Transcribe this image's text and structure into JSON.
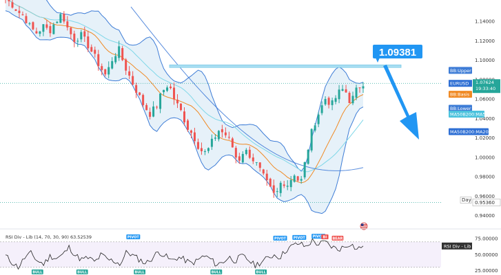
{
  "chart_data": [
    {
      "type": "candlestick",
      "symbol": "EURUSD",
      "price_axis_ticks": [
        "1.14000",
        "1.12000",
        "1.10000",
        "1.08000",
        "1.06000",
        "1.04000",
        "1.02000",
        "1.00000",
        "0.98000",
        "0.96000",
        "0.94000"
      ],
      "ylim": [
        0.932,
        1.162
      ],
      "callout_value": "1.09381",
      "resistance_zone": [
        1.0925,
        1.0952
      ],
      "labels": {
        "bb_upper": "BB:Upper",
        "symbol": "EURUSD",
        "last_price": "1.07624",
        "countdown": "19:33:40",
        "bb_basis": "BB:Basis",
        "bb_lower": "BB:Lower",
        "ma50": "MA50B200:MA50",
        "ma200": "MA50B200:MA200",
        "day_low_tag": "Day",
        "day_low_value": "0.95360"
      },
      "label_values": {
        "bb_upper": 1.0825,
        "last_price": 1.0762,
        "bb_basis": 1.065,
        "bb_lower": 1.0505,
        "ma50": 1.0445,
        "ma200": 1.0265,
        "day_low": 0.9536
      },
      "close_path": [
        1.163,
        1.158,
        1.15,
        1.145,
        1.133,
        1.128,
        1.135,
        1.13,
        1.14,
        1.148,
        1.131,
        1.121,
        1.126,
        1.117,
        1.106,
        1.094,
        1.084,
        1.101,
        1.112,
        1.094,
        1.08,
        1.067,
        1.054,
        1.045,
        1.052,
        1.068,
        1.076,
        1.058,
        1.047,
        1.031,
        1.022,
        1.008,
        1.004,
        1.017,
        1.028,
        1.024,
        1.014,
        0.995,
        1.008,
        1.002,
        0.993,
        0.981,
        0.969,
        0.959,
        0.976,
        0.972,
        0.984,
        0.972,
        1.003,
        1.032,
        1.047,
        1.061,
        1.054,
        1.066,
        1.071,
        1.056,
        1.07,
        1.077
      ]
    },
    {
      "type": "line",
      "title": "RSI Div - Lib (14, 70, 30, 90) 63.52539",
      "indicator_label": "RSI Div - Lib",
      "ticks": [
        "75.00000",
        "50.00000",
        "25.00000"
      ],
      "ylim": [
        20,
        85
      ],
      "levels": [
        70,
        30
      ],
      "last_value": 63.52539,
      "rsi_path": [
        48,
        38,
        30,
        45,
        52,
        40,
        35,
        48,
        44,
        50,
        62,
        48,
        42,
        45,
        38,
        50,
        42,
        40,
        35,
        55,
        48,
        42,
        36,
        45,
        55,
        48,
        40,
        46,
        42,
        36,
        40,
        48,
        44,
        34,
        38,
        46,
        40,
        48,
        42,
        33,
        38,
        44,
        50,
        46,
        58,
        64,
        68,
        62,
        72,
        66,
        70,
        63,
        58,
        62,
        68,
        58,
        63.5
      ],
      "markers": [
        {
          "text": "PIVOT",
          "kind": "bull",
          "x_index": 20,
          "y": 72
        },
        {
          "text": "PIVOT",
          "kind": "bull",
          "x_index": 43,
          "y": 70
        },
        {
          "text": "PIVOT",
          "kind": "bull",
          "x_index": 46,
          "y": 71
        },
        {
          "text": "PIVOT",
          "kind": "bull",
          "x_index": 49,
          "y": 73
        },
        {
          "text": "BI",
          "kind": "bear",
          "x_index": 50,
          "y": 72
        },
        {
          "text": "BEAR",
          "kind": "bear",
          "x_index": 52,
          "y": 70
        },
        {
          "text": "BULL",
          "kind": "bull-low",
          "x_index": 5,
          "y": 22
        },
        {
          "text": "BULL",
          "kind": "bull-low",
          "x_index": 12,
          "y": 22
        },
        {
          "text": "BULL",
          "kind": "bull-low",
          "x_index": 21,
          "y": 22
        },
        {
          "text": "BULL",
          "kind": "bull-low",
          "x_index": 33,
          "y": 22
        },
        {
          "text": "BULL",
          "kind": "bull-low",
          "x_index": 40,
          "y": 22
        }
      ]
    }
  ]
}
